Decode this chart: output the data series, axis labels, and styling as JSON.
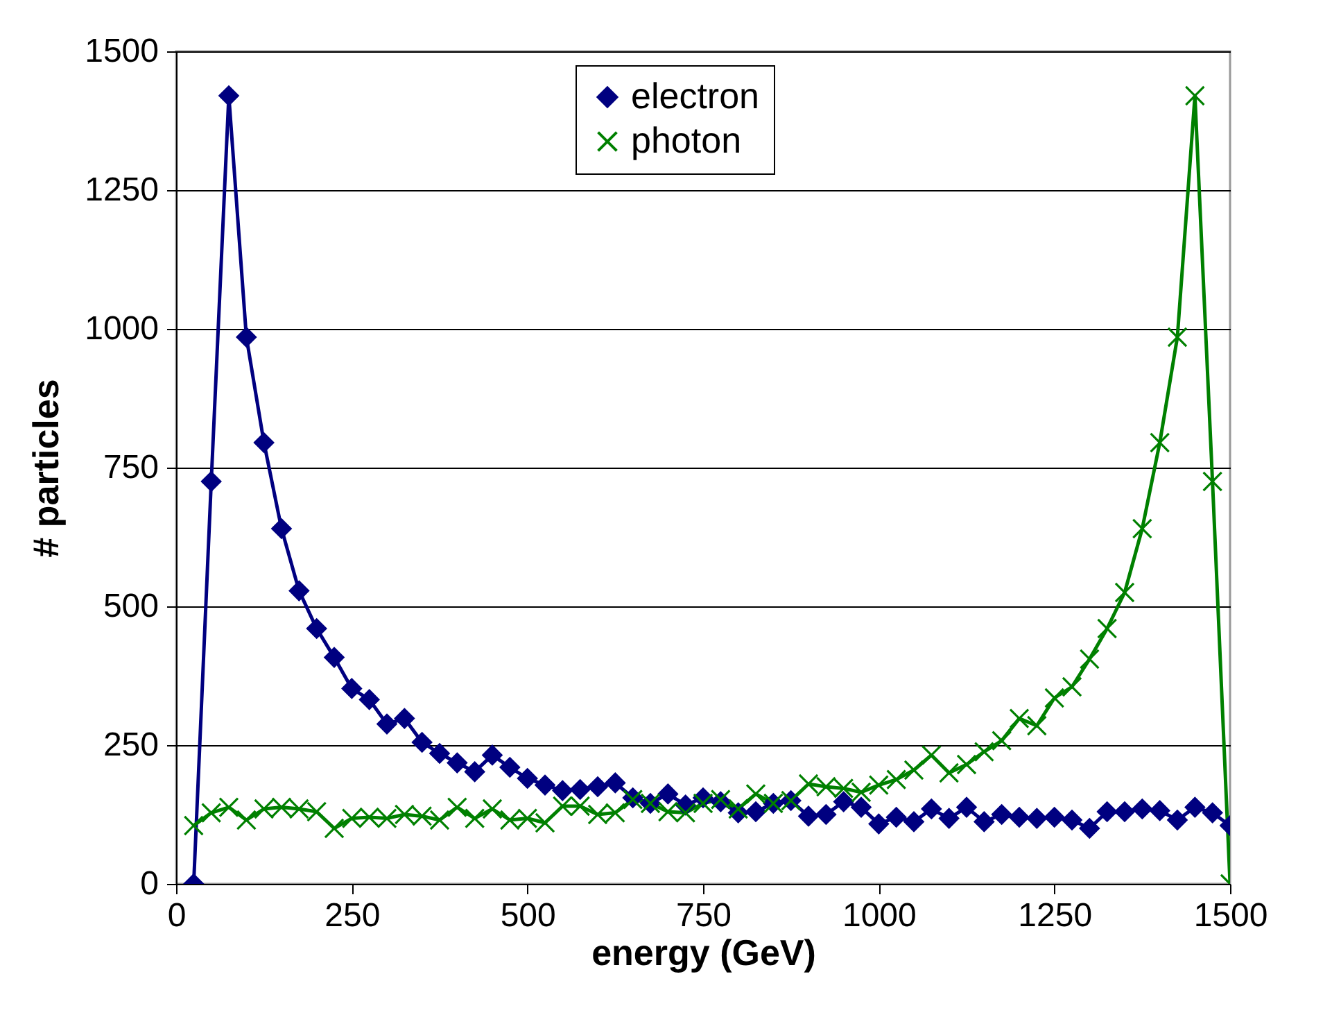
{
  "chart_data": {
    "type": "line",
    "xlabel": "energy (GeV)",
    "ylabel": "# particles",
    "x": [
      25,
      50,
      75,
      100,
      125,
      150,
      175,
      200,
      225,
      250,
      275,
      300,
      325,
      350,
      375,
      400,
      425,
      450,
      475,
      500,
      525,
      550,
      575,
      600,
      625,
      650,
      675,
      700,
      725,
      750,
      775,
      800,
      825,
      850,
      875,
      900,
      925,
      950,
      975,
      1000,
      1025,
      1050,
      1075,
      1100,
      1125,
      1150,
      1175,
      1200,
      1225,
      1250,
      1275,
      1300,
      1325,
      1350,
      1375,
      1400,
      1425,
      1450,
      1475,
      1500
    ],
    "series": [
      {
        "name": "electron",
        "color": "#000080",
        "marker": "diamond",
        "values": [
          0,
          725,
          1420,
          985,
          795,
          640,
          528,
          460,
          408,
          352,
          332,
          288,
          298,
          255,
          235,
          218,
          202,
          232,
          210,
          190,
          178,
          168,
          170,
          175,
          182,
          155,
          145,
          162,
          142,
          155,
          148,
          128,
          130,
          145,
          150,
          122,
          125,
          148,
          138,
          108,
          120,
          112,
          135,
          118,
          138,
          112,
          125,
          120,
          118,
          120,
          115,
          100,
          130,
          130,
          135,
          132,
          115,
          138,
          128,
          105
        ]
      },
      {
        "name": "photon",
        "color": "#008000",
        "marker": "cross",
        "values": [
          105,
          128,
          138,
          115,
          135,
          138,
          135,
          130,
          100,
          118,
          120,
          118,
          125,
          122,
          115,
          138,
          118,
          135,
          115,
          118,
          110,
          140,
          140,
          125,
          128,
          152,
          145,
          130,
          128,
          145,
          152,
          135,
          162,
          145,
          150,
          180,
          175,
          172,
          165,
          178,
          188,
          205,
          232,
          200,
          215,
          238,
          258,
          298,
          285,
          335,
          355,
          405,
          460,
          525,
          640,
          795,
          985,
          1420,
          725,
          0
        ]
      }
    ],
    "xlim": [
      0,
      1500
    ],
    "xticks": [
      0,
      250,
      500,
      750,
      1000,
      1250,
      1500
    ],
    "ylim": [
      0,
      1500
    ],
    "yticks": [
      0,
      250,
      500,
      750,
      1000,
      1250,
      1500
    ],
    "grid": "y",
    "legend": "top"
  }
}
